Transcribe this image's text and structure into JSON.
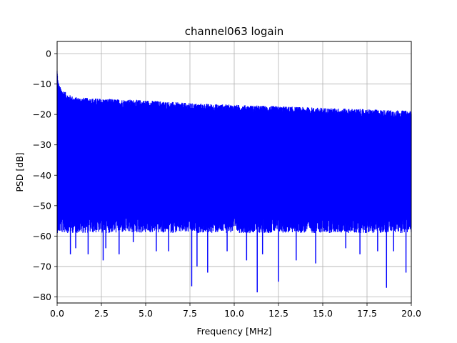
{
  "chart_data": {
    "type": "line",
    "title": "channel063 logain",
    "xlabel": "Frequency [MHz]",
    "ylabel": "PSD [dB]",
    "xlim": [
      0,
      20
    ],
    "ylim": [
      -82,
      4
    ],
    "x_ticks": [
      0,
      2.5,
      5,
      7.5,
      10,
      12.5,
      15,
      17.5,
      20
    ],
    "x_tick_labels": [
      "0.0",
      "2.5",
      "5.0",
      "7.5",
      "10.0",
      "12.5",
      "15.0",
      "17.5",
      "20.0"
    ],
    "y_ticks": [
      0,
      -10,
      -20,
      -30,
      -40,
      -50,
      -60,
      -70,
      -80
    ],
    "y_tick_labels": [
      "0",
      "−10",
      "−20",
      "−30",
      "−40",
      "−50",
      "−60",
      "−70",
      "−80"
    ],
    "grid": true,
    "series": [
      {
        "color": "#0000ff",
        "envelope": {
          "x": [
            0.0,
            0.05,
            0.15,
            0.3,
            0.6,
            1.0,
            2.5,
            5.0,
            7.5,
            10.0,
            12.5,
            15.0,
            17.5,
            20.0
          ],
          "upper": [
            -6,
            -10,
            -12,
            -13,
            -14.5,
            -15.5,
            -16,
            -16.5,
            -17.5,
            -18,
            -18.5,
            -19,
            -19.5,
            -20
          ],
          "upper_noise_range": [
            -1.5,
            1.2
          ],
          "lower_band": [
            -53,
            -59
          ]
        },
        "deep_dips": [
          {
            "x": 0.75,
            "y": -66
          },
          {
            "x": 1.05,
            "y": -64
          },
          {
            "x": 1.75,
            "y": -66
          },
          {
            "x": 2.6,
            "y": -68
          },
          {
            "x": 2.75,
            "y": -64
          },
          {
            "x": 3.5,
            "y": -66
          },
          {
            "x": 4.3,
            "y": -62
          },
          {
            "x": 5.6,
            "y": -65
          },
          {
            "x": 6.3,
            "y": -65
          },
          {
            "x": 7.6,
            "y": -76.5
          },
          {
            "x": 7.9,
            "y": -70
          },
          {
            "x": 8.5,
            "y": -72
          },
          {
            "x": 9.6,
            "y": -65
          },
          {
            "x": 10.7,
            "y": -68
          },
          {
            "x": 11.3,
            "y": -78.5
          },
          {
            "x": 11.6,
            "y": -66
          },
          {
            "x": 12.5,
            "y": -75
          },
          {
            "x": 13.5,
            "y": -68
          },
          {
            "x": 14.6,
            "y": -69
          },
          {
            "x": 16.3,
            "y": -64
          },
          {
            "x": 17.1,
            "y": -66
          },
          {
            "x": 18.1,
            "y": -65
          },
          {
            "x": 18.6,
            "y": -77
          },
          {
            "x": 19.0,
            "y": -65
          },
          {
            "x": 19.7,
            "y": -72
          }
        ]
      }
    ]
  }
}
